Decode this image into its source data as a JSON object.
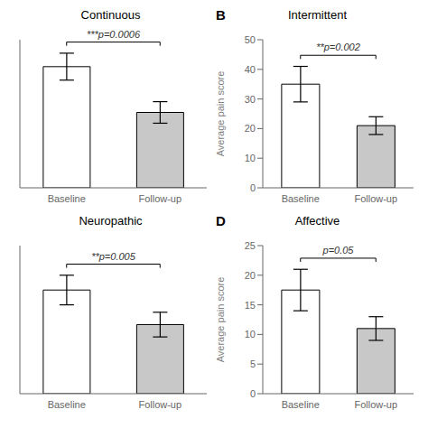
{
  "chart_data": [
    {
      "type": "bar",
      "title": "Continuous",
      "categories": [
        "Baseline",
        "Follow-up"
      ],
      "values": [
        45,
        28
      ],
      "errors": [
        5,
        4
      ],
      "colors": [
        "white",
        "#c8c8c8"
      ],
      "ylim": [
        0,
        55
      ],
      "tick_labels": "x",
      "annotation": "***p=0.0006"
    },
    {
      "type": "bar",
      "title": "Intermittent",
      "categories": [
        "Baseline",
        "Follow-up"
      ],
      "values": [
        35,
        21
      ],
      "errors": [
        6,
        3
      ],
      "colors": [
        "white",
        "#c8c8c8"
      ],
      "ylim": [
        0,
        50
      ],
      "yticks": [
        0,
        10,
        20,
        30,
        40,
        50
      ],
      "ylabel": "Average pain score",
      "annotation": "**p=0.002",
      "panel_label": "B"
    },
    {
      "type": "bar",
      "title": "Neuropathic",
      "categories": [
        "Baseline",
        "Follow-up"
      ],
      "values": [
        21,
        14
      ],
      "errors": [
        3,
        2.5
      ],
      "colors": [
        "white",
        "#c8c8c8"
      ],
      "ylim": [
        0,
        30
      ],
      "tick_labels": "x",
      "annotation": "**p=0.005"
    },
    {
      "type": "bar",
      "title": "Affective",
      "categories": [
        "Baseline",
        "Follow-up"
      ],
      "values": [
        17.5,
        11
      ],
      "errors": [
        3.5,
        2
      ],
      "colors": [
        "white",
        "#c8c8c8"
      ],
      "ylim": [
        0,
        25
      ],
      "yticks": [
        0,
        5,
        10,
        15,
        20,
        25
      ],
      "ylabel": "Average pain score",
      "annotation": "p=0.05",
      "panel_label": "D"
    }
  ]
}
